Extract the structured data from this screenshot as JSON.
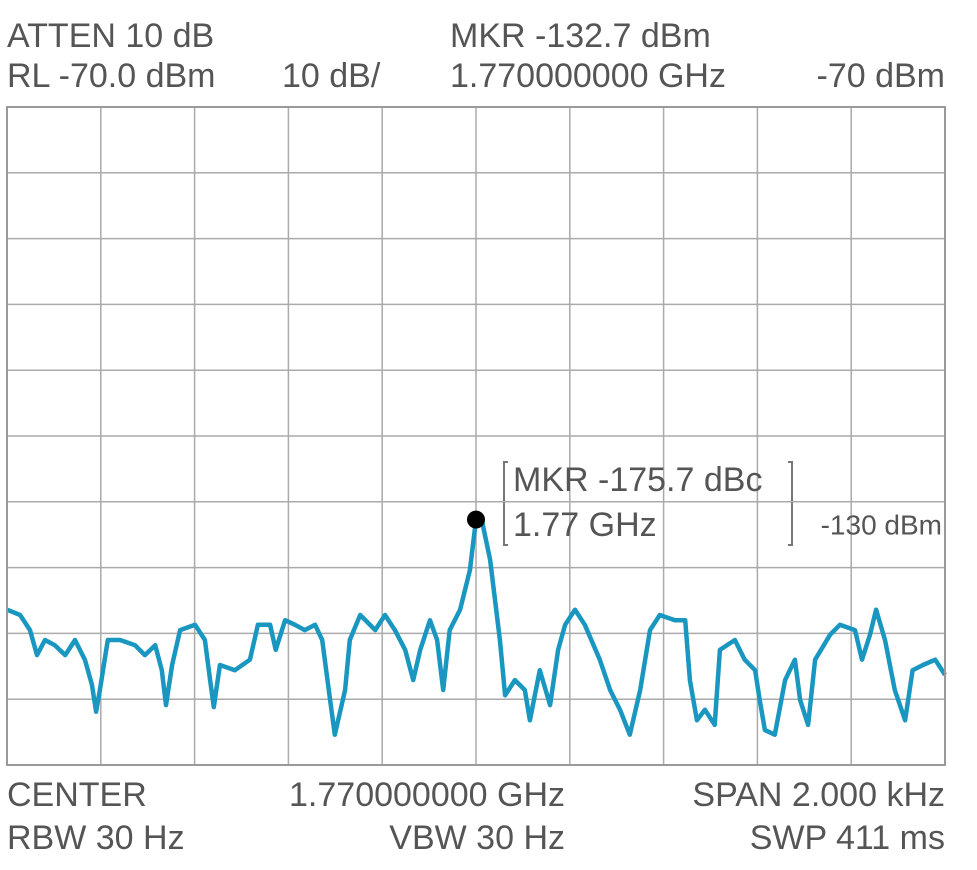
{
  "chart_data": {
    "type": "line",
    "labels": {
      "atten": "ATTEN 10 dB",
      "ref_level": "RL -70.0 dBm",
      "scale": "10 dB/",
      "marker_level": "MKR -132.7 dBm",
      "marker_freq": "1.770000000 GHz",
      "top_ref": "-70 dBm",
      "marker_delta": "MKR -175.7 dBc",
      "marker_delta_freq": "1.77 GHz",
      "level_ref": "-130 dBm",
      "center_label": "CENTER",
      "center_freq": "1.770000000 GHz",
      "span": "SPAN 2.000 kHz",
      "rbw": "RBW 30 Hz",
      "vbw": "VBW 30 Hz",
      "sweep": "SWP 411 ms"
    },
    "x": [
      -1000,
      -972,
      -951,
      -936,
      -919,
      -898,
      -876,
      -855,
      -834,
      -819,
      -810,
      -802,
      -785,
      -759,
      -727,
      -706,
      -684,
      -670,
      -661,
      -648,
      -631,
      -599,
      -578,
      -567,
      -559,
      -546,
      -514,
      -482,
      -465,
      -439,
      -427,
      -407,
      -386,
      -365,
      -343,
      -328,
      -311,
      -301,
      -279,
      -269,
      -247,
      -215,
      -194,
      -173,
      -151,
      -134,
      -119,
      -98,
      -83,
      -70,
      -56,
      -34,
      -13,
      0,
      13,
      30,
      51,
      62,
      83,
      104,
      115,
      136,
      158,
      175,
      190,
      211,
      232,
      264,
      286,
      307,
      328,
      350,
      371,
      392,
      424,
      446,
      456,
      471,
      488,
      509,
      520,
      552,
      573,
      595,
      605,
      616,
      637,
      659,
      680,
      691,
      708,
      723,
      755,
      776,
      808,
      823,
      840,
      853,
      872,
      893,
      915,
      931,
      953,
      979,
      1000
    ],
    "values": [
      -146.4,
      -147.2,
      -149.5,
      -153.3,
      -151.0,
      -151.8,
      -153.3,
      -151.0,
      -154.0,
      -157.8,
      -161.9,
      -158.6,
      -151.0,
      -151.0,
      -151.8,
      -153.3,
      -151.8,
      -155.6,
      -160.9,
      -154.8,
      -149.5,
      -148.7,
      -151.0,
      -157.1,
      -161.2,
      -154.8,
      -155.6,
      -154.0,
      -148.7,
      -148.7,
      -152.5,
      -148.0,
      -148.7,
      -149.5,
      -148.7,
      -151.0,
      -160.1,
      -165.4,
      -158.6,
      -151.0,
      -147.2,
      -149.5,
      -147.2,
      -149.5,
      -152.5,
      -157.1,
      -152.5,
      -148.0,
      -151.0,
      -158.6,
      -149.5,
      -146.4,
      -140.4,
      -132.7,
      -133.0,
      -138.8,
      -151.0,
      -159.4,
      -157.1,
      -158.6,
      -163.2,
      -155.6,
      -160.9,
      -152.5,
      -148.7,
      -146.4,
      -148.7,
      -154.0,
      -158.6,
      -161.6,
      -165.4,
      -158.6,
      -149.5,
      -147.2,
      -148.0,
      -148.0,
      -157.1,
      -163.2,
      -161.6,
      -163.9,
      -152.5,
      -151.0,
      -154.0,
      -155.6,
      -160.1,
      -164.7,
      -165.4,
      -157.1,
      -154.0,
      -160.1,
      -163.9,
      -154.0,
      -150.2,
      -148.7,
      -149.5,
      -154.0,
      -150.2,
      -146.4,
      -151.0,
      -158.6,
      -163.2,
      -155.6,
      -154.8,
      -154.0,
      -156.3
    ],
    "color": "#1a97c0",
    "marker": {
      "x": 0,
      "y": -132.7,
      "color": "#000000"
    },
    "xlim": [
      -1000,
      1000
    ],
    "ylim": [
      -170,
      -70
    ],
    "xticks": [
      -1000,
      -800,
      -600,
      -400,
      -200,
      0,
      200,
      400,
      600,
      800,
      1000
    ],
    "yticks": [
      -170,
      -160,
      -150,
      -140,
      -130,
      -120,
      -110,
      -100,
      -90,
      -80,
      -70
    ],
    "grid": true
  }
}
